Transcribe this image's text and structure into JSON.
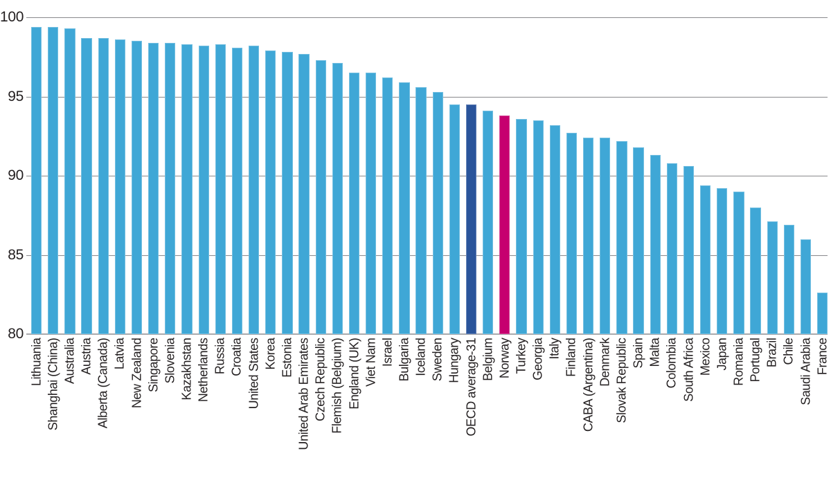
{
  "chart_data": {
    "type": "bar",
    "title": "",
    "xlabel": "",
    "ylabel": "",
    "ylim": [
      80,
      100
    ],
    "yticks": [
      100,
      95,
      90,
      85,
      80
    ],
    "grid": "horizontal-gridlines-on",
    "legend": "none",
    "colors": {
      "default": "#3fa7d6",
      "oecd_highlight": "#2a549b",
      "norway_highlight": "#c6006f"
    },
    "categories": [
      "Lithuania",
      "Shanghai (China)",
      "Australia",
      "Austria",
      "Alberta (Canada)",
      "Latvia",
      "New Zealand",
      "Singapore",
      "Slovenia",
      "Kazakhstan",
      "Netherlands",
      "Russia",
      "Croatia",
      "United States",
      "Korea",
      "Estonia",
      "United Arab Emirates",
      "Czech Republic",
      "Flemish (Belgium)",
      "England (UK)",
      "Viet Nam",
      "Israel",
      "Bulgaria",
      "Iceland",
      "Sweden",
      "Hungary",
      "OECD average-31",
      "Belgium",
      "Norway",
      "Turkey",
      "Georgia",
      "Italy",
      "Finland",
      "CABA (Argentina)",
      "Denmark",
      "Slovak Republic",
      "Spain",
      "Malta",
      "Colombia",
      "South Africa",
      "Mexico",
      "Japan",
      "Romania",
      "Portugal",
      "Brazil",
      "Chile",
      "Saudi Arabia",
      "France"
    ],
    "values": [
      99.4,
      99.4,
      99.3,
      98.7,
      98.7,
      98.6,
      98.5,
      98.4,
      98.4,
      98.3,
      98.2,
      98.3,
      98.1,
      98.2,
      97.9,
      97.8,
      97.7,
      97.3,
      97.1,
      96.5,
      96.5,
      96.2,
      95.9,
      95.6,
      95.3,
      94.5,
      94.5,
      94.1,
      93.8,
      93.6,
      93.5,
      93.2,
      92.7,
      92.4,
      92.4,
      92.2,
      91.8,
      91.3,
      90.8,
      90.6,
      89.4,
      89.2,
      89.0,
      88.0,
      87.1,
      86.9,
      86.0,
      82.6
    ],
    "highlighted_bars": [
      {
        "label": "OECD average-31",
        "color_key": "oecd_highlight"
      },
      {
        "label": "Norway",
        "color_key": "norway_highlight"
      }
    ]
  }
}
